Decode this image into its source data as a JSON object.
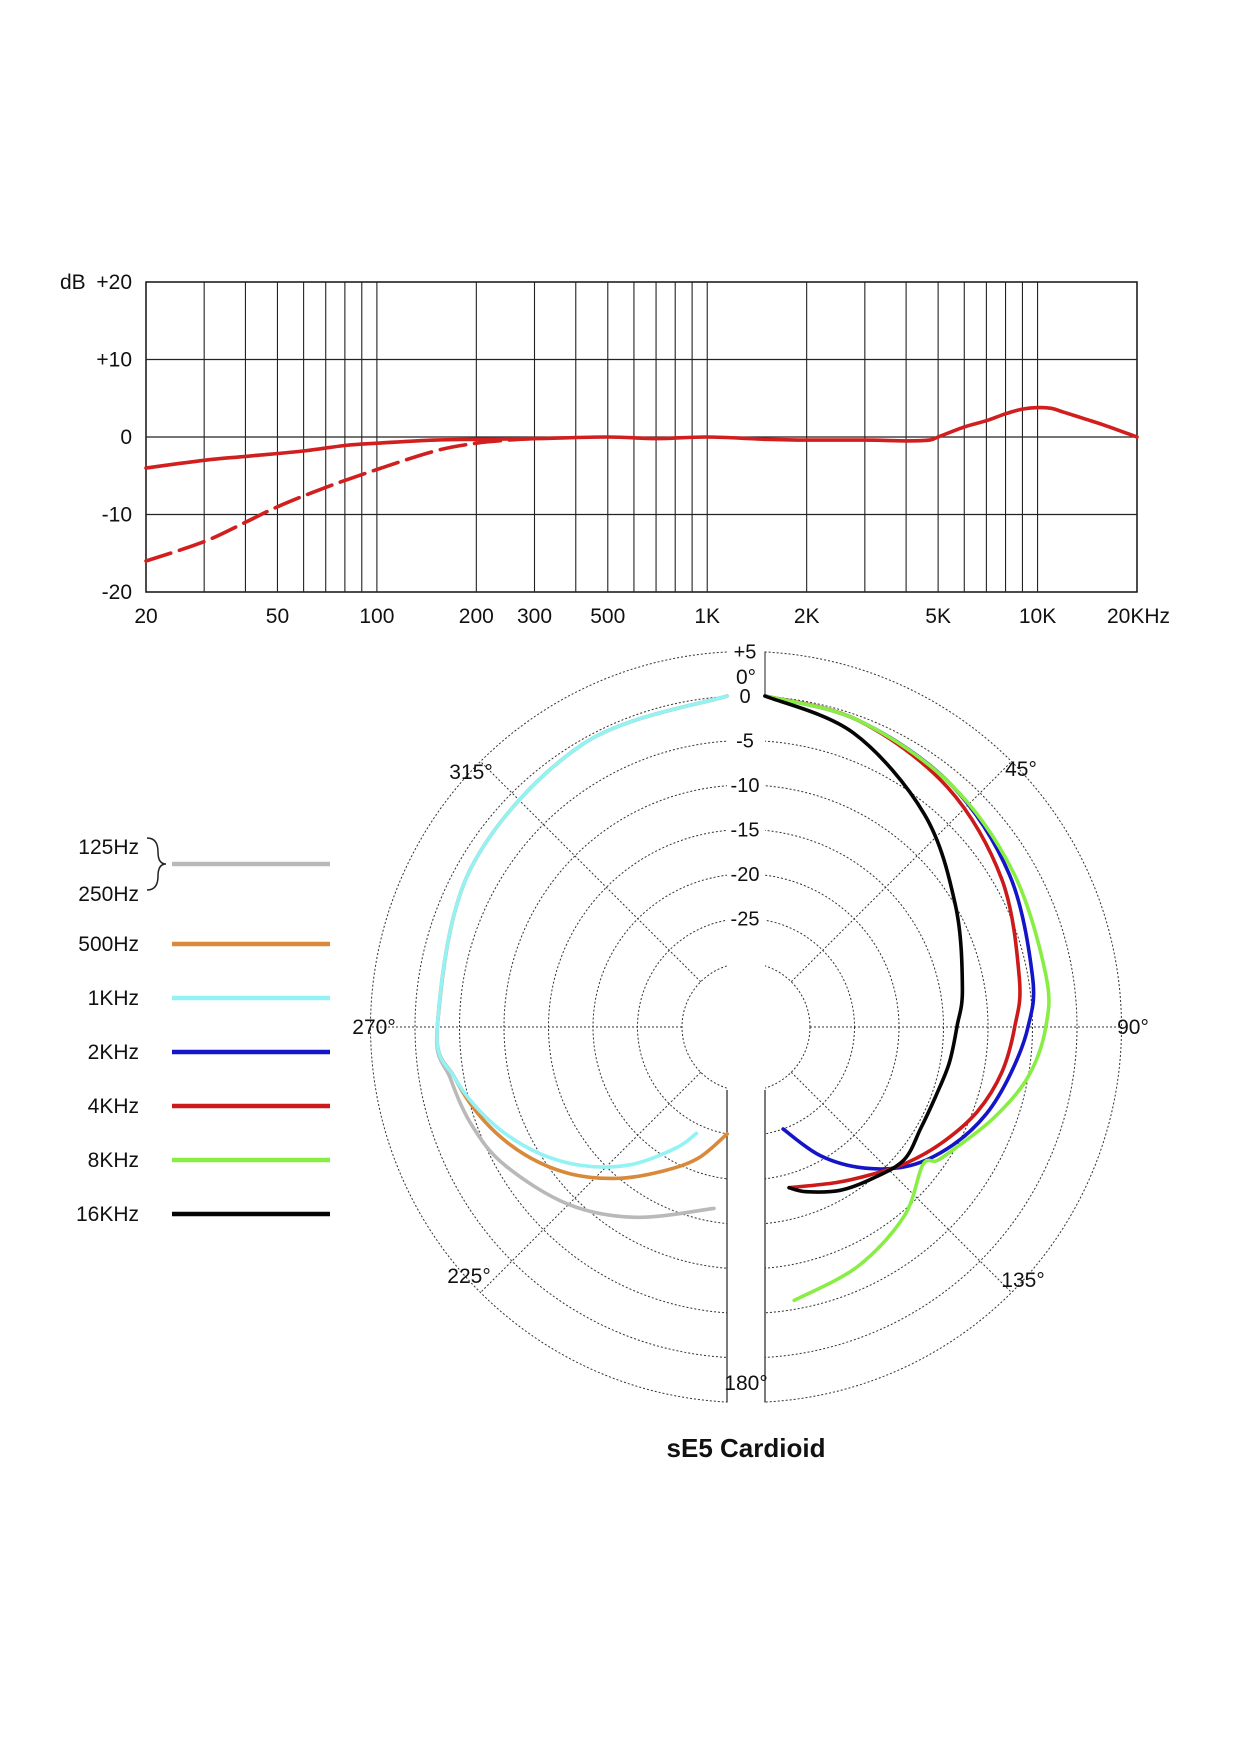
{
  "chart_data": [
    {
      "type": "line",
      "scale": "log-x",
      "y_unit_label": "dB",
      "x_tick_labels": [
        "20",
        "50",
        "100",
        "200",
        "300",
        "500",
        "1K",
        "2K",
        "5K",
        "10K",
        "20KHz"
      ],
      "y_tick_labels": [
        "+20",
        "+10",
        "0",
        "-10",
        "-20"
      ],
      "xlim": [
        20,
        20000
      ],
      "ylim": [
        -20,
        20
      ],
      "grid": true,
      "series": [
        {
          "style": "solid",
          "color": "#d11f1f",
          "x": [
            20,
            30,
            40,
            60,
            80,
            100,
            150,
            200,
            300,
            500,
            700,
            1000,
            1500,
            2000,
            3000,
            4000,
            4700,
            5000,
            6000,
            7000,
            8000,
            9000,
            10000,
            11000,
            12000,
            14000,
            16000,
            20000
          ],
          "y": [
            -4,
            -3,
            -2.5,
            -1.8,
            -1.1,
            -0.8,
            -0.4,
            -0.3,
            -0.2,
            0,
            -0.2,
            0,
            -0.3,
            -0.4,
            -0.4,
            -0.5,
            -0.4,
            0,
            1.3,
            2.1,
            3,
            3.6,
            3.8,
            3.7,
            3.2,
            2.3,
            1.5,
            0
          ]
        },
        {
          "style": "dashed",
          "color": "#d11f1f",
          "x": [
            20,
            30,
            40,
            50,
            70,
            100,
            150,
            200,
            250,
            300
          ],
          "y": [
            -16,
            -13.5,
            -11,
            -9,
            -6.5,
            -4.2,
            -1.8,
            -0.8,
            -0.4,
            -0.2
          ]
        }
      ]
    },
    {
      "type": "polar",
      "title": "sE5 Cardioid",
      "angle_labels": [
        "0°",
        "45°",
        "90°",
        "135°",
        "180°",
        "225°",
        "270°",
        "315°"
      ],
      "ring_labels": [
        "+5",
        "0",
        "-5",
        "-10",
        "-15",
        "-20",
        "-25"
      ],
      "rlim": [
        -30,
        5
      ],
      "legend_placement": "left",
      "series": [
        {
          "name": "125Hz",
          "name2": "250Hz",
          "color": "#b9b9b9",
          "side": "left",
          "angles": [
            0,
            30,
            60,
            90,
            100,
            110,
            120,
            135,
            150,
            170
          ],
          "values": [
            0,
            -0.5,
            -1.5,
            -2.5,
            -3.5,
            -4.5,
            -6,
            -9,
            -12.5,
            -16.5
          ]
        },
        {
          "name": "500Hz",
          "color": "#d88a3a",
          "side": "left",
          "angles": [
            0,
            30,
            60,
            90,
            100,
            110,
            120,
            130,
            140,
            150,
            160,
            170
          ],
          "values": [
            0,
            -0.5,
            -1.5,
            -2.5,
            -4,
            -6,
            -8.5,
            -11.5,
            -15,
            -18.5,
            -21.5,
            -25
          ]
        },
        {
          "name": "1KHz",
          "color": "#92f2f4",
          "side": "left",
          "angles": [
            0,
            30,
            60,
            90,
            100,
            110,
            120,
            130,
            140,
            150,
            155
          ],
          "values": [
            0,
            -0.5,
            -1.5,
            -2.5,
            -4,
            -6.5,
            -9.5,
            -13,
            -17,
            -21.5,
            -24
          ]
        },
        {
          "name": "2KHz",
          "color": "#1414c8",
          "side": "right",
          "angles": [
            0,
            20,
            40,
            60,
            80,
            90,
            100,
            110,
            120,
            130,
            140,
            150,
            160
          ],
          "values": [
            0,
            -0.5,
            -1.5,
            -3,
            -4.5,
            -5.5,
            -7,
            -8.5,
            -10.5,
            -13,
            -16.5,
            -20.5,
            -25
          ]
        },
        {
          "name": "4KHz",
          "color": "#cc1a1a",
          "side": "right",
          "angles": [
            0,
            20,
            40,
            60,
            80,
            90,
            100,
            110,
            120,
            130,
            140,
            150,
            165
          ],
          "values": [
            0,
            -0.5,
            -2,
            -4,
            -6,
            -7,
            -8,
            -9.5,
            -11.5,
            -13.5,
            -15.5,
            -17,
            -18.5
          ]
        },
        {
          "name": "8KHz",
          "color": "#88ee44",
          "side": "right",
          "angles": [
            0,
            20,
            40,
            60,
            80,
            90,
            100,
            110,
            120,
            125,
            128,
            140,
            155,
            170
          ],
          "values": [
            0,
            -0.5,
            -1.5,
            -2.5,
            -3,
            -3.5,
            -5,
            -7.5,
            -10,
            -11,
            -12,
            -9.5,
            -7.5,
            -6
          ]
        },
        {
          "name": "16KHz",
          "color": "#050505",
          "side": "right",
          "angles": [
            0,
            20,
            40,
            60,
            80,
            90,
            100,
            110,
            120,
            130,
            140,
            150,
            160,
            165
          ],
          "values": [
            0,
            -2,
            -6,
            -10,
            -12.5,
            -13.5,
            -14,
            -14.5,
            -14.5,
            -14,
            -15,
            -16,
            -17.5,
            -18.5
          ]
        }
      ]
    }
  ]
}
